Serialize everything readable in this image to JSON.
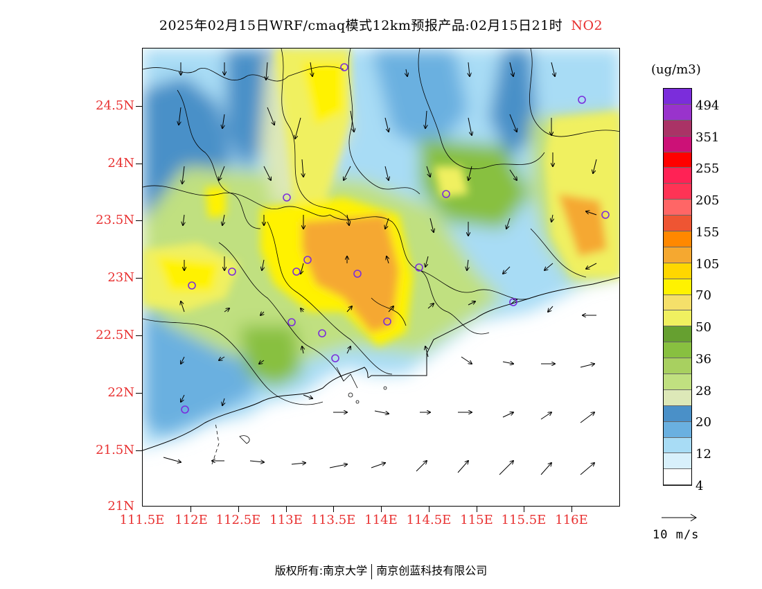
{
  "title": "2025年02月15日WRF/cmaq模式12km预报产品:02月15日21时",
  "pollutant": "NO2",
  "colors": {
    "axis_label": "#e83030",
    "pollutant": "#e83030"
  },
  "y_axis": {
    "labels": [
      "24.5N",
      "24N",
      "23.5N",
      "23N",
      "22.5N",
      "22N",
      "21.5N",
      "21N"
    ]
  },
  "x_axis": {
    "labels": [
      "111.5E",
      "112E",
      "112.5E",
      "113E",
      "113.5E",
      "114E",
      "114.5E",
      "115E",
      "115.5E",
      "116E"
    ]
  },
  "colorbar": {
    "unit": "(ug/m3)",
    "colors": [
      "#7b2ddb",
      "#9933cc",
      "#aa3366",
      "#cc1177",
      "#ff0000",
      "#ff2255",
      "#ff3355",
      "#ff6666",
      "#ee5533",
      "#ff8800",
      "#f5a830",
      "#ffd700",
      "#fff200",
      "#f5e06a",
      "#f0f060",
      "#66a030",
      "#88c040",
      "#a8d060",
      "#c0e080",
      "#dde8b8",
      "#4a90c8",
      "#6ab0e0",
      "#a8dcf5",
      "#d8f0fb",
      "#ffffff"
    ],
    "labels": [
      "494",
      "351",
      "255",
      "205",
      "155",
      "105",
      "70",
      "50",
      "36",
      "28",
      "20",
      "12",
      "4"
    ]
  },
  "reference_vector": {
    "label": "10 m/s"
  },
  "credit": {
    "left": "版权所有:南京大学",
    "right": "南京创蓝科技有限公司"
  }
}
